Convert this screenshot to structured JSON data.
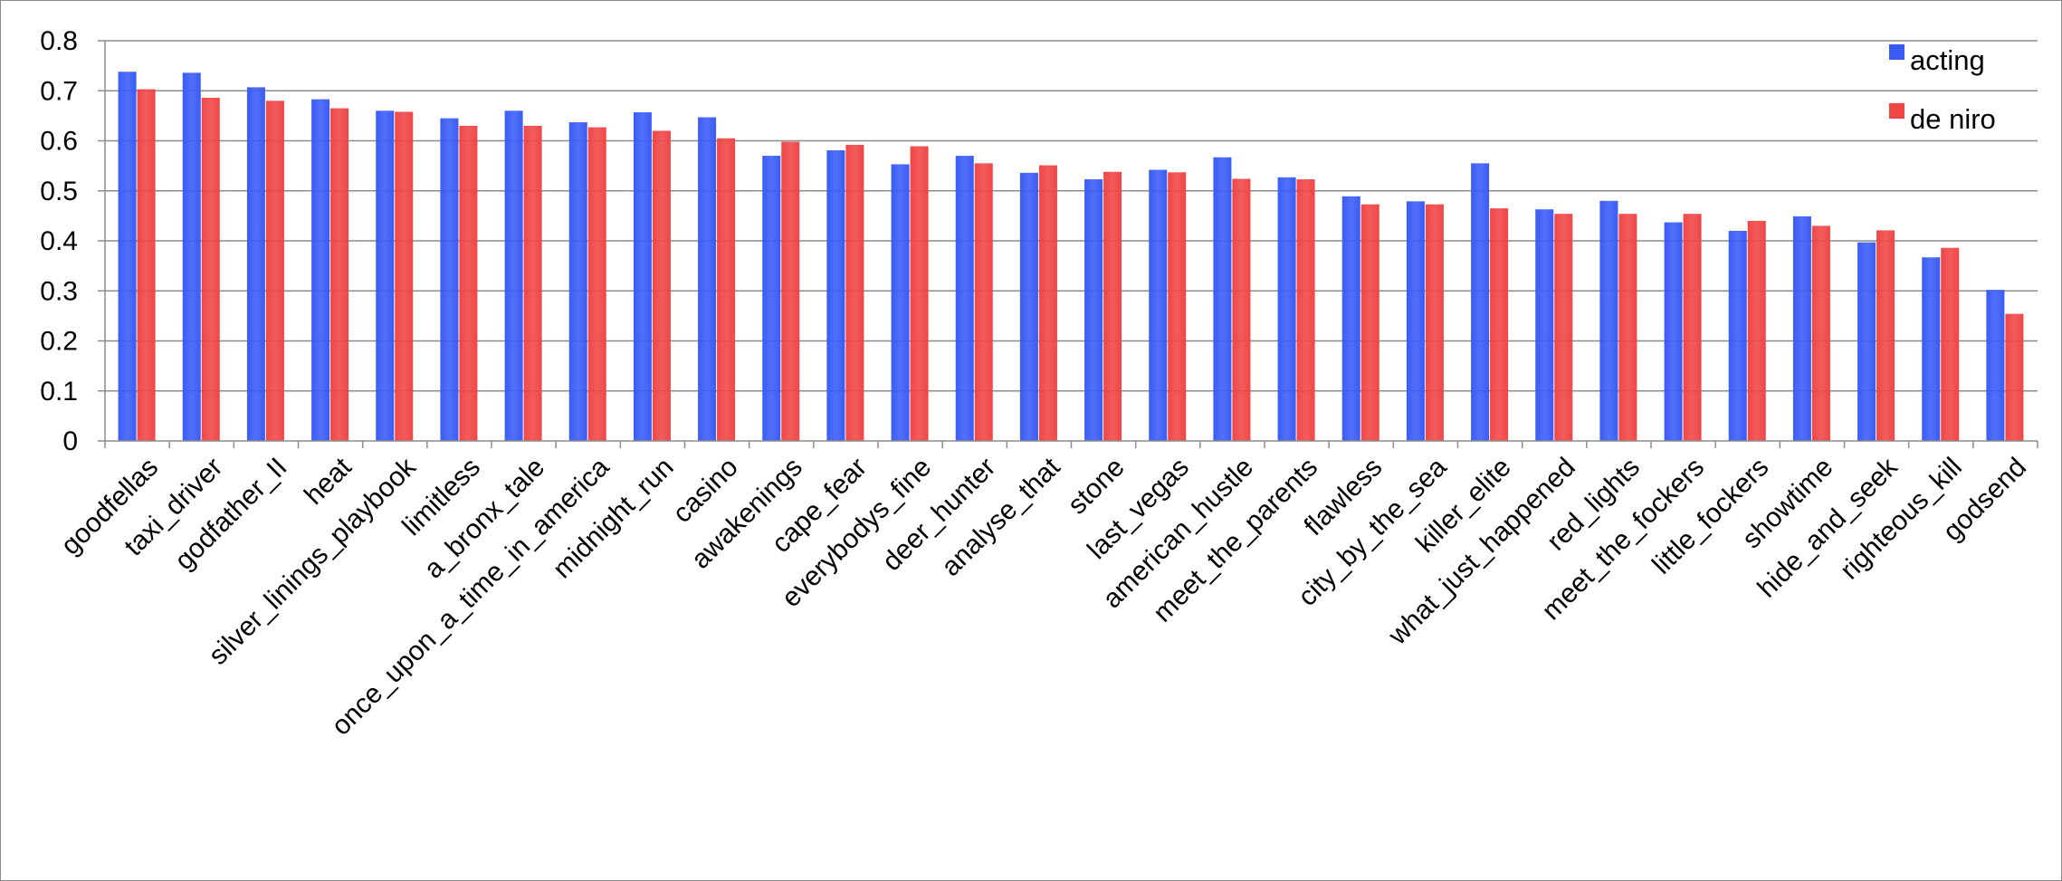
{
  "chart_data": {
    "type": "bar",
    "title": "",
    "xlabel": "",
    "ylabel": "",
    "ylim": [
      0,
      0.8
    ],
    "yticks": [
      "0",
      "0.1",
      "0.2",
      "0.3",
      "0.4",
      "0.5",
      "0.6",
      "0.7",
      "0.8"
    ],
    "grid": true,
    "legend_position": "top-right",
    "categories": [
      "goodfellas",
      "taxi_driver",
      "godfather_II",
      "heat",
      "silver_linings_playbook",
      "limitless",
      "a_bronx_tale",
      "once_upon_a_time_in_america",
      "midnight_run",
      "casino",
      "awakenings",
      "cape_fear",
      "everybodys_fine",
      "deer_hunter",
      "analyse_that",
      "stone",
      "last_vegas",
      "american_hustle",
      "meet_the_parents",
      "flawless",
      "city_by_the_sea",
      "killer_elite",
      "what_just_happened",
      "red_lights",
      "meet_the_fockers",
      "little_fockers",
      "showtime",
      "hide_and_seek",
      "righteous_kill",
      "godsend"
    ],
    "series": [
      {
        "name": "acting",
        "color": "#3a5cf6",
        "values": [
          0.738,
          0.736,
          0.707,
          0.683,
          0.66,
          0.645,
          0.66,
          0.637,
          0.657,
          0.647,
          0.57,
          0.581,
          0.553,
          0.57,
          0.536,
          0.523,
          0.542,
          0.567,
          0.527,
          0.489,
          0.479,
          0.555,
          0.463,
          0.48,
          0.437,
          0.42,
          0.449,
          0.397,
          0.367,
          0.302
        ]
      },
      {
        "name": "de niro",
        "color": "#f04646",
        "values": [
          0.703,
          0.686,
          0.68,
          0.665,
          0.658,
          0.63,
          0.63,
          0.627,
          0.62,
          0.605,
          0.598,
          0.592,
          0.589,
          0.555,
          0.551,
          0.538,
          0.537,
          0.524,
          0.523,
          0.473,
          0.473,
          0.465,
          0.454,
          0.454,
          0.454,
          0.44,
          0.43,
          0.421,
          0.386,
          0.254
        ]
      }
    ]
  }
}
